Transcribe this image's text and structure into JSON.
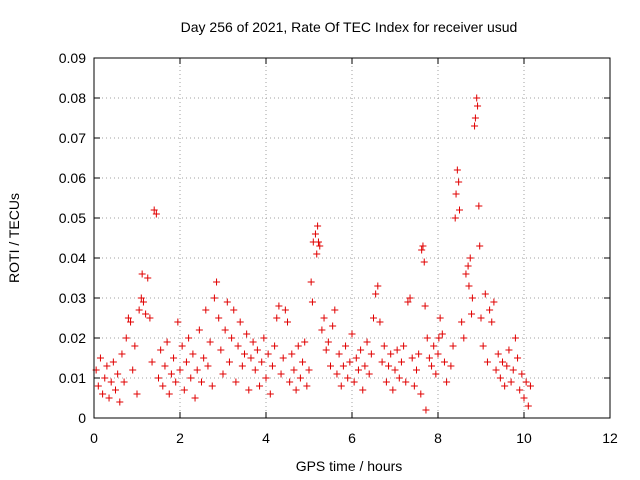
{
  "chart_data": {
    "type": "scatter",
    "title": "Day 256 of 2021, Rate Of TEC Index for receiver usud",
    "xlabel": "GPS time / hours",
    "ylabel": "ROTI / TECUs",
    "xlim": [
      0,
      12
    ],
    "ylim": [
      0,
      0.09
    ],
    "x_ticks": [
      0,
      2,
      4,
      6,
      8,
      10,
      12
    ],
    "y_ticks": [
      0,
      0.01,
      0.02,
      0.03,
      0.04,
      0.05,
      0.06,
      0.07,
      0.08,
      0.09
    ],
    "x_tick_labels": [
      "0",
      "2",
      "4",
      "6",
      "8",
      "10",
      "12"
    ],
    "y_tick_labels": [
      "0",
      "0.01",
      "0.02",
      "0.03",
      "0.04",
      "0.05",
      "0.06",
      "0.07",
      "0.08",
      "0.09"
    ],
    "grid": true,
    "marker": "+",
    "series": [
      {
        "name": "ROTI",
        "color": "#e00000",
        "points": [
          [
            0.05,
            0.012
          ],
          [
            0.1,
            0.008
          ],
          [
            0.15,
            0.015
          ],
          [
            0.2,
            0.006
          ],
          [
            0.25,
            0.01
          ],
          [
            0.3,
            0.013
          ],
          [
            0.35,
            0.005
          ],
          [
            0.4,
            0.009
          ],
          [
            0.45,
            0.014
          ],
          [
            0.5,
            0.007
          ],
          [
            0.55,
            0.011
          ],
          [
            0.6,
            0.004
          ],
          [
            0.65,
            0.016
          ],
          [
            0.7,
            0.009
          ],
          [
            0.75,
            0.02
          ],
          [
            0.8,
            0.025
          ],
          [
            0.85,
            0.024
          ],
          [
            0.9,
            0.012
          ],
          [
            0.95,
            0.018
          ],
          [
            1.0,
            0.006
          ],
          [
            1.05,
            0.027
          ],
          [
            1.1,
            0.03
          ],
          [
            1.12,
            0.036
          ],
          [
            1.15,
            0.029
          ],
          [
            1.2,
            0.026
          ],
          [
            1.25,
            0.035
          ],
          [
            1.3,
            0.025
          ],
          [
            1.35,
            0.014
          ],
          [
            1.4,
            0.052
          ],
          [
            1.45,
            0.051
          ],
          [
            1.5,
            0.01
          ],
          [
            1.55,
            0.017
          ],
          [
            1.6,
            0.008
          ],
          [
            1.65,
            0.013
          ],
          [
            1.7,
            0.019
          ],
          [
            1.75,
            0.006
          ],
          [
            1.8,
            0.011
          ],
          [
            1.85,
            0.015
          ],
          [
            1.9,
            0.009
          ],
          [
            1.95,
            0.024
          ],
          [
            2.0,
            0.012
          ],
          [
            2.05,
            0.018
          ],
          [
            2.1,
            0.007
          ],
          [
            2.15,
            0.014
          ],
          [
            2.2,
            0.02
          ],
          [
            2.25,
            0.01
          ],
          [
            2.3,
            0.016
          ],
          [
            2.35,
            0.005
          ],
          [
            2.4,
            0.012
          ],
          [
            2.45,
            0.022
          ],
          [
            2.5,
            0.009
          ],
          [
            2.55,
            0.015
          ],
          [
            2.6,
            0.027
          ],
          [
            2.65,
            0.013
          ],
          [
            2.7,
            0.019
          ],
          [
            2.75,
            0.008
          ],
          [
            2.8,
            0.03
          ],
          [
            2.85,
            0.034
          ],
          [
            2.9,
            0.025
          ],
          [
            2.95,
            0.017
          ],
          [
            3.0,
            0.011
          ],
          [
            3.05,
            0.022
          ],
          [
            3.1,
            0.029
          ],
          [
            3.15,
            0.014
          ],
          [
            3.2,
            0.02
          ],
          [
            3.25,
            0.027
          ],
          [
            3.3,
            0.009
          ],
          [
            3.35,
            0.018
          ],
          [
            3.4,
            0.024
          ],
          [
            3.45,
            0.013
          ],
          [
            3.5,
            0.016
          ],
          [
            3.55,
            0.021
          ],
          [
            3.6,
            0.007
          ],
          [
            3.65,
            0.015
          ],
          [
            3.7,
            0.019
          ],
          [
            3.75,
            0.012
          ],
          [
            3.8,
            0.017
          ],
          [
            3.85,
            0.008
          ],
          [
            3.9,
            0.014
          ],
          [
            3.95,
            0.02
          ],
          [
            4.0,
            0.01
          ],
          [
            4.05,
            0.016
          ],
          [
            4.1,
            0.006
          ],
          [
            4.15,
            0.013
          ],
          [
            4.2,
            0.018
          ],
          [
            4.25,
            0.025
          ],
          [
            4.3,
            0.028
          ],
          [
            4.35,
            0.011
          ],
          [
            4.4,
            0.015
          ],
          [
            4.45,
            0.027
          ],
          [
            4.5,
            0.024
          ],
          [
            4.55,
            0.009
          ],
          [
            4.6,
            0.016
          ],
          [
            4.65,
            0.012
          ],
          [
            4.7,
            0.007
          ],
          [
            4.75,
            0.018
          ],
          [
            4.8,
            0.01
          ],
          [
            4.85,
            0.014
          ],
          [
            4.9,
            0.019
          ],
          [
            4.95,
            0.008
          ],
          [
            5.0,
            0.012
          ],
          [
            5.05,
            0.034
          ],
          [
            5.08,
            0.029
          ],
          [
            5.1,
            0.044
          ],
          [
            5.15,
            0.046
          ],
          [
            5.18,
            0.041
          ],
          [
            5.2,
            0.048
          ],
          [
            5.22,
            0.044
          ],
          [
            5.25,
            0.043
          ],
          [
            5.3,
            0.022
          ],
          [
            5.35,
            0.025
          ],
          [
            5.4,
            0.017
          ],
          [
            5.45,
            0.019
          ],
          [
            5.5,
            0.013
          ],
          [
            5.55,
            0.023
          ],
          [
            5.6,
            0.027
          ],
          [
            5.65,
            0.011
          ],
          [
            5.7,
            0.016
          ],
          [
            5.75,
            0.008
          ],
          [
            5.8,
            0.013
          ],
          [
            5.85,
            0.018
          ],
          [
            5.9,
            0.01
          ],
          [
            5.95,
            0.014
          ],
          [
            6.0,
            0.021
          ],
          [
            6.05,
            0.009
          ],
          [
            6.1,
            0.015
          ],
          [
            6.15,
            0.012
          ],
          [
            6.2,
            0.017
          ],
          [
            6.25,
            0.007
          ],
          [
            6.3,
            0.013
          ],
          [
            6.35,
            0.019
          ],
          [
            6.4,
            0.011
          ],
          [
            6.45,
            0.016
          ],
          [
            6.5,
            0.025
          ],
          [
            6.55,
            0.031
          ],
          [
            6.6,
            0.033
          ],
          [
            6.65,
            0.024
          ],
          [
            6.7,
            0.014
          ],
          [
            6.75,
            0.018
          ],
          [
            6.8,
            0.009
          ],
          [
            6.85,
            0.013
          ],
          [
            6.9,
            0.016
          ],
          [
            6.95,
            0.007
          ],
          [
            7.0,
            0.012
          ],
          [
            7.05,
            0.017
          ],
          [
            7.1,
            0.01
          ],
          [
            7.15,
            0.014
          ],
          [
            7.2,
            0.018
          ],
          [
            7.25,
            0.009
          ],
          [
            7.3,
            0.029
          ],
          [
            7.35,
            0.03
          ],
          [
            7.4,
            0.015
          ],
          [
            7.45,
            0.008
          ],
          [
            7.5,
            0.012
          ],
          [
            7.55,
            0.016
          ],
          [
            7.6,
            0.006
          ],
          [
            7.62,
            0.042
          ],
          [
            7.65,
            0.043
          ],
          [
            7.68,
            0.039
          ],
          [
            7.7,
            0.028
          ],
          [
            7.72,
            0.002
          ],
          [
            7.75,
            0.02
          ],
          [
            7.8,
            0.015
          ],
          [
            7.85,
            0.013
          ],
          [
            7.9,
            0.018
          ],
          [
            7.95,
            0.011
          ],
          [
            8.0,
            0.016
          ],
          [
            8.02,
            0.02
          ],
          [
            8.05,
            0.025
          ],
          [
            8.1,
            0.021
          ],
          [
            8.15,
            0.014
          ],
          [
            8.2,
            0.009
          ],
          [
            8.3,
            0.013
          ],
          [
            8.35,
            0.018
          ],
          [
            8.4,
            0.05
          ],
          [
            8.42,
            0.056
          ],
          [
            8.45,
            0.062
          ],
          [
            8.48,
            0.059
          ],
          [
            8.5,
            0.052
          ],
          [
            8.55,
            0.024
          ],
          [
            8.6,
            0.02
          ],
          [
            8.65,
            0.036
          ],
          [
            8.7,
            0.038
          ],
          [
            8.72,
            0.033
          ],
          [
            8.75,
            0.04
          ],
          [
            8.78,
            0.026
          ],
          [
            8.8,
            0.03
          ],
          [
            8.85,
            0.073
          ],
          [
            8.87,
            0.075
          ],
          [
            8.9,
            0.08
          ],
          [
            8.92,
            0.078
          ],
          [
            8.95,
            0.053
          ],
          [
            8.97,
            0.043
          ],
          [
            9.0,
            0.025
          ],
          [
            9.05,
            0.018
          ],
          [
            9.1,
            0.031
          ],
          [
            9.15,
            0.014
          ],
          [
            9.2,
            0.027
          ],
          [
            9.25,
            0.024
          ],
          [
            9.3,
            0.029
          ],
          [
            9.35,
            0.012
          ],
          [
            9.4,
            0.016
          ],
          [
            9.45,
            0.01
          ],
          [
            9.5,
            0.014
          ],
          [
            9.55,
            0.008
          ],
          [
            9.6,
            0.013
          ],
          [
            9.65,
            0.017
          ],
          [
            9.7,
            0.009
          ],
          [
            9.75,
            0.012
          ],
          [
            9.8,
            0.02
          ],
          [
            9.85,
            0.015
          ],
          [
            9.9,
            0.007
          ],
          [
            9.95,
            0.011
          ],
          [
            10.0,
            0.005
          ],
          [
            10.05,
            0.009
          ],
          [
            10.1,
            0.003
          ],
          [
            10.15,
            0.008
          ]
        ]
      }
    ]
  }
}
